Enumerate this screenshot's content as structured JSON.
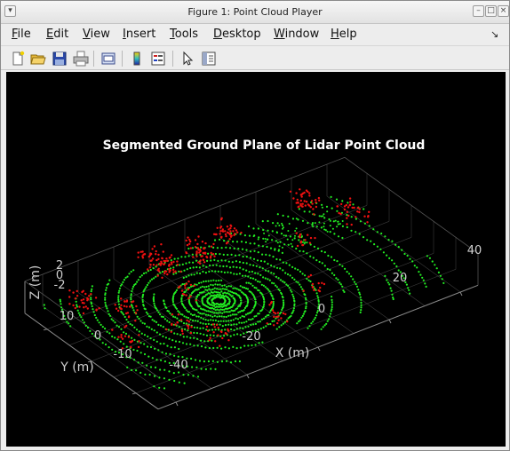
{
  "window": {
    "title": "Figure 1: Point Cloud Player"
  },
  "menu": {
    "items": [
      {
        "key": "F",
        "rest": "ile"
      },
      {
        "key": "E",
        "rest": "dit"
      },
      {
        "key": "V",
        "rest": "iew"
      },
      {
        "key": "I",
        "rest": "nsert"
      },
      {
        "key": "T",
        "rest": "ools"
      },
      {
        "key": "D",
        "rest": "esktop"
      },
      {
        "key": "W",
        "rest": "indow"
      },
      {
        "key": "H",
        "rest": "elp"
      }
    ]
  },
  "toolbar": {
    "icons": [
      "new-figure-icon",
      "open-folder-icon",
      "save-icon",
      "print-icon",
      "print-preview-icon",
      "colorbar-icon",
      "legend-icon",
      "pointer-icon",
      "property-inspector-icon"
    ]
  },
  "chart_data": {
    "type": "scatter",
    "title": "Segmented Ground Plane of Lidar Point Cloud",
    "xlabel": "X (m)",
    "ylabel": "Y (m)",
    "zlabel": "Z (m)",
    "x_ticks": [
      "-40",
      "-20",
      "0",
      "20",
      "40"
    ],
    "y_ticks": [
      "-10",
      "0",
      "10"
    ],
    "z_ticks": [
      "-2",
      "0",
      "2"
    ],
    "xlim": [
      -45,
      45
    ],
    "ylim": [
      -15,
      15
    ],
    "zlim": [
      -3,
      3
    ],
    "grid": true,
    "background": "#000000",
    "series": [
      {
        "name": "",
        "color": "#22ee22"
      },
      {
        "name": "",
        "color": "#ee1111"
      }
    ]
  },
  "colors": {
    "ground": "#22ee22",
    "obstacle": "#ee1111",
    "axes_text": "#cfcfcf",
    "grid": "#3a3a3a"
  }
}
